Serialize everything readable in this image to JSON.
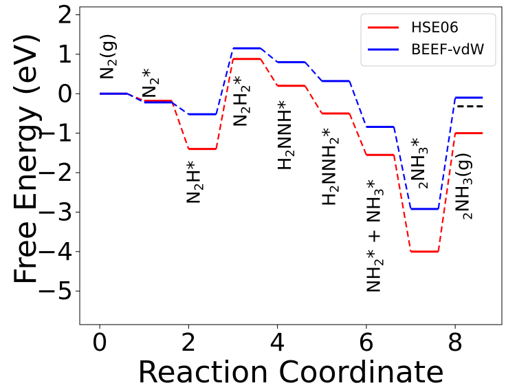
{
  "chart_data": {
    "type": "line",
    "xlabel": "Reaction Coordinate",
    "ylabel": "Free Energy (eV)",
    "xlim": [
      -0.45,
      9.05
    ],
    "ylim": [
      -5.85,
      2.2
    ],
    "xticks": [
      "0",
      "2",
      "4",
      "6",
      "8"
    ],
    "yticks": [
      "2",
      "1",
      "0",
      "−1",
      "−2",
      "−3",
      "−4",
      "−5"
    ],
    "legend_position": "top-right",
    "series": [
      {
        "name": "HSE06",
        "color": "#ff0000",
        "levels": [
          0.0,
          -0.18,
          -1.4,
          0.88,
          0.2,
          -0.5,
          -1.55,
          -4.0,
          -1.0
        ]
      },
      {
        "name": "BEEF-vdW",
        "color": "#0000ff",
        "levels": [
          0.0,
          -0.22,
          -0.52,
          1.15,
          0.8,
          0.32,
          -0.84,
          -2.92,
          -0.1
        ]
      }
    ],
    "black_level": {
      "x": 8,
      "value": -0.32,
      "color": "#000000"
    },
    "species": [
      {
        "main": "N",
        "sub": "2",
        "tail": "(g)"
      },
      {
        "main": "N",
        "sub": "2",
        "tail": "*"
      },
      {
        "main": "N",
        "sub": "2",
        "tail": "H*"
      },
      {
        "main": "N",
        "sub": "2",
        "tail": "H",
        "sub2": "2",
        "tail2": "*"
      },
      {
        "main": "H",
        "sub": "2",
        "tail": "NNH*"
      },
      {
        "main": "H",
        "sub": "2",
        "tail": "NNH",
        "sub2": "2",
        "tail2": "*"
      },
      {
        "main": "NH",
        "sub": "2",
        "tail": "* + NH",
        "sub2": "3",
        "tail2": "*"
      },
      {
        "main": "",
        "sub": "2",
        "tail": "NH",
        "sub2": "3",
        "tail2": "*"
      },
      {
        "main": "",
        "sub": "2",
        "tail": "NH",
        "sub2": "3",
        "tail2": "(g)"
      }
    ]
  }
}
